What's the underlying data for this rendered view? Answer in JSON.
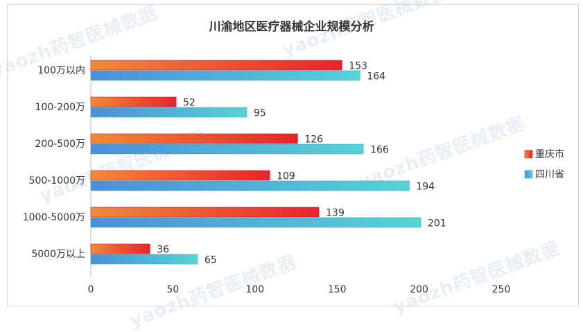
{
  "chart_data": {
    "type": "bar",
    "orientation": "horizontal",
    "title": "川渝地区医疗器械企业规模分析",
    "categories": [
      "100万以内",
      "100-200万",
      "200-500万",
      "500-1000万",
      "1000-5000万",
      "5000万以上"
    ],
    "series": [
      {
        "name": "重庆市",
        "values": [
          153,
          52,
          126,
          109,
          139,
          36
        ],
        "color_start": "#f08a3a",
        "color_end": "#e8232b"
      },
      {
        "name": "四川省",
        "values": [
          164,
          95,
          166,
          194,
          201,
          65
        ],
        "color_start": "#4a8fd8",
        "color_end": "#57d3d6"
      }
    ],
    "xlim": [
      0,
      250
    ],
    "xticks": [
      "0",
      "50",
      "100",
      "150",
      "200",
      "250"
    ],
    "grid": false,
    "legend_position": "right"
  },
  "watermark": "yaozh药智医械数据"
}
